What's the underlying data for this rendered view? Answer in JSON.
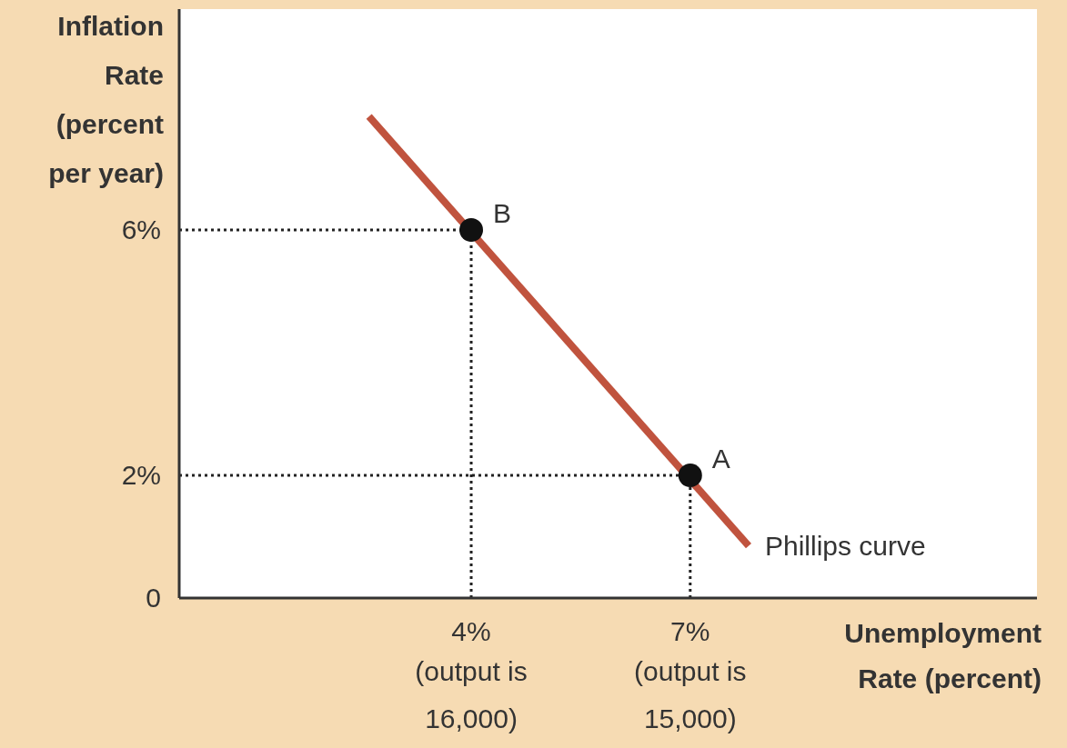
{
  "chart_data": {
    "type": "line",
    "xlabel": "Unemployment Rate (percent)",
    "ylabel": "Inflation Rate (percent per year)",
    "xlim": [
      0,
      11.75
    ],
    "ylim": [
      0,
      9.6
    ],
    "xticks": [
      {
        "value": 4,
        "label": "4%"
      },
      {
        "value": 7,
        "label": "7%"
      }
    ],
    "yticks": [
      0,
      {
        "value": 2,
        "label": "2%"
      },
      {
        "value": 6,
        "label": "6%"
      }
    ],
    "grid": false,
    "legend": false,
    "series": [
      {
        "name": "Phillips curve",
        "color": "#c0533e",
        "x": [
          2.6,
          7.8
        ],
        "values": [
          7.85,
          0.85
        ],
        "marker": "none",
        "line_style": "solid"
      },
      {
        "type": "line",
        "color": "#222222",
        "x": [
          0,
          4
        ],
        "values": [
          6,
          6
        ],
        "marker": "none",
        "line_style": "dotted"
      },
      {
        "type": "line",
        "color": "#222222",
        "x": [
          4,
          4
        ],
        "values": [
          0,
          6
        ],
        "marker": "none",
        "line_style": "dotted"
      },
      {
        "type": "line",
        "color": "#222222",
        "x": [
          0,
          7
        ],
        "values": [
          2,
          2
        ],
        "marker": "none",
        "line_style": "dotted"
      },
      {
        "type": "line",
        "color": "#222222",
        "x": [
          7,
          7
        ],
        "values": [
          0,
          2
        ],
        "marker": "none",
        "line_style": "dotted"
      },
      {
        "type": "scatter",
        "color": "#111111",
        "x": [
          4,
          7
        ],
        "values": [
          6,
          2
        ],
        "marker": "circle"
      }
    ],
    "annotations": [
      {
        "text": "B",
        "x": 4,
        "y": 6
      },
      {
        "text": "A",
        "x": 7,
        "y": 2
      },
      "(output is\n16,000)",
      "(output is\n15,000)"
    ]
  }
}
